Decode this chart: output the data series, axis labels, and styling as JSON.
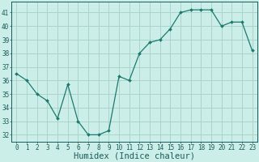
{
  "x": [
    0,
    1,
    2,
    3,
    4,
    5,
    6,
    7,
    8,
    9,
    10,
    11,
    12,
    13,
    14,
    15,
    16,
    17,
    18,
    19,
    20,
    21,
    22,
    23
  ],
  "y": [
    36.5,
    36.0,
    35.0,
    34.5,
    33.2,
    35.7,
    33.0,
    32.0,
    32.0,
    32.3,
    36.3,
    36.0,
    38.0,
    38.8,
    39.0,
    39.8,
    41.0,
    41.2,
    41.2,
    41.2,
    40.0,
    40.3,
    40.3,
    38.2
  ],
  "line_color": "#1a7a6e",
  "marker": "D",
  "marker_size": 2.0,
  "bg_color": "#cceee8",
  "grid_color": "#aad4cc",
  "xlabel": "Humidex (Indice chaleur)",
  "ylim": [
    31.5,
    41.8
  ],
  "xlim": [
    -0.5,
    23.5
  ],
  "yticks": [
    32,
    33,
    34,
    35,
    36,
    37,
    38,
    39,
    40,
    41
  ],
  "xticks": [
    0,
    1,
    2,
    3,
    4,
    5,
    6,
    7,
    8,
    9,
    10,
    11,
    12,
    13,
    14,
    15,
    16,
    17,
    18,
    19,
    20,
    21,
    22,
    23
  ],
  "tick_color": "#1a5a5a",
  "label_fontsize": 5.5,
  "axis_label_fontsize": 7.5
}
